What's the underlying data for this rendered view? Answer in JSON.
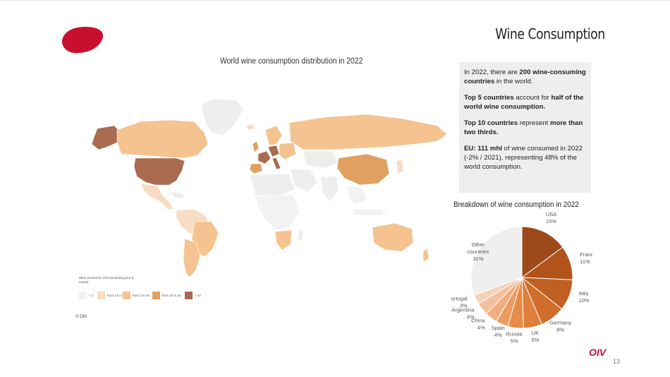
{
  "slide": {
    "title": "Wine Consumption",
    "page_number": "13",
    "brand": "OIV",
    "brand_color": "#c8102e"
  },
  "map": {
    "title": "World wine consumption distribution in 2022",
    "legend_title": "Wine production mhl (excluding juice & musts)",
    "copyright": "© OIV",
    "legend": [
      {
        "label": "< 1",
        "color": "#f2f2f2"
      },
      {
        "label": "from 1 to 3",
        "color": "#f9dcc4"
      },
      {
        "label": "from 3 to 10",
        "color": "#f4c38f"
      },
      {
        "label": "from 10 to 20",
        "color": "#e0a060"
      },
      {
        "label": "> 20",
        "color": "#a86b4f"
      }
    ]
  },
  "info": {
    "p1_a": "In 2022, there are ",
    "p1_b": "200 wine-consuming countries",
    "p1_c": " in the world.",
    "p2_a": "Top 5 countries",
    "p2_b": " account for ",
    "p2_c": "half of the world wine consumption.",
    "p3_a": "Top 10 countries",
    "p3_b": " represent ",
    "p3_c": "more than two thirds.",
    "p4_a": "EU: 111 mhl",
    "p4_b": " of wine consumed in 2022 (-2% / 2021), representing 48% of the world consumption."
  },
  "chart_data": {
    "type": "pie",
    "title": "Breakdown of wine consumption in 2022",
    "slices": [
      {
        "label": "USA",
        "value": 15,
        "pct": "15%",
        "color": "#9c4a1a"
      },
      {
        "label": "France",
        "value": 11,
        "pct": "11%",
        "color": "#b3531c"
      },
      {
        "label": "Italy",
        "value": 10,
        "pct": "10%",
        "color": "#c05f22"
      },
      {
        "label": "Germany",
        "value": 8,
        "pct": "8%",
        "color": "#d06d2c"
      },
      {
        "label": "UK",
        "value": 6,
        "pct": "6%",
        "color": "#de7f3a"
      },
      {
        "label": "Russia",
        "value": 5,
        "pct": "5%",
        "color": "#e68b48"
      },
      {
        "label": "Spain",
        "value": 4,
        "pct": "4%",
        "color": "#ec9c63"
      },
      {
        "label": "China",
        "value": 4,
        "pct": "4%",
        "color": "#f0ad80"
      },
      {
        "label": "Argentina",
        "value": 4,
        "pct": "4%",
        "color": "#f3bf9d"
      },
      {
        "label": "Portugal",
        "value": 3,
        "pct": "3%",
        "color": "#f6d0b8"
      },
      {
        "label": "Other countries",
        "value": 31,
        "pct": "31%",
        "color": "#efefef"
      }
    ]
  }
}
